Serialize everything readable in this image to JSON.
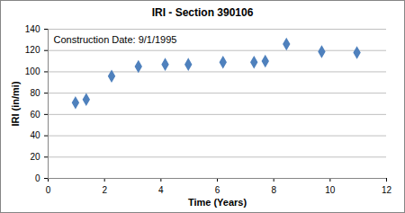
{
  "chart_data": {
    "type": "scatter",
    "title": "IRI - Section 390106",
    "annotation": "Construction Date: 9/1/1995",
    "x_label": "Time (Years)",
    "y_label": "IRI (in/mi)",
    "x": [
      0.97,
      1.35,
      2.25,
      3.2,
      4.15,
      4.97,
      6.2,
      7.3,
      7.7,
      8.45,
      9.7,
      10.95
    ],
    "values": [
      71,
      74,
      96,
      105,
      107,
      107,
      109,
      109,
      110,
      126,
      119,
      118
    ],
    "color": "#4f81bd",
    "marker": "diamond",
    "xlim": [
      0,
      12
    ],
    "xticks": [
      0,
      2,
      4,
      6,
      8,
      10,
      12
    ],
    "ylim": [
      0,
      140
    ],
    "yticks": [
      0,
      20,
      40,
      60,
      80,
      100,
      120,
      140
    ],
    "grid": true
  }
}
